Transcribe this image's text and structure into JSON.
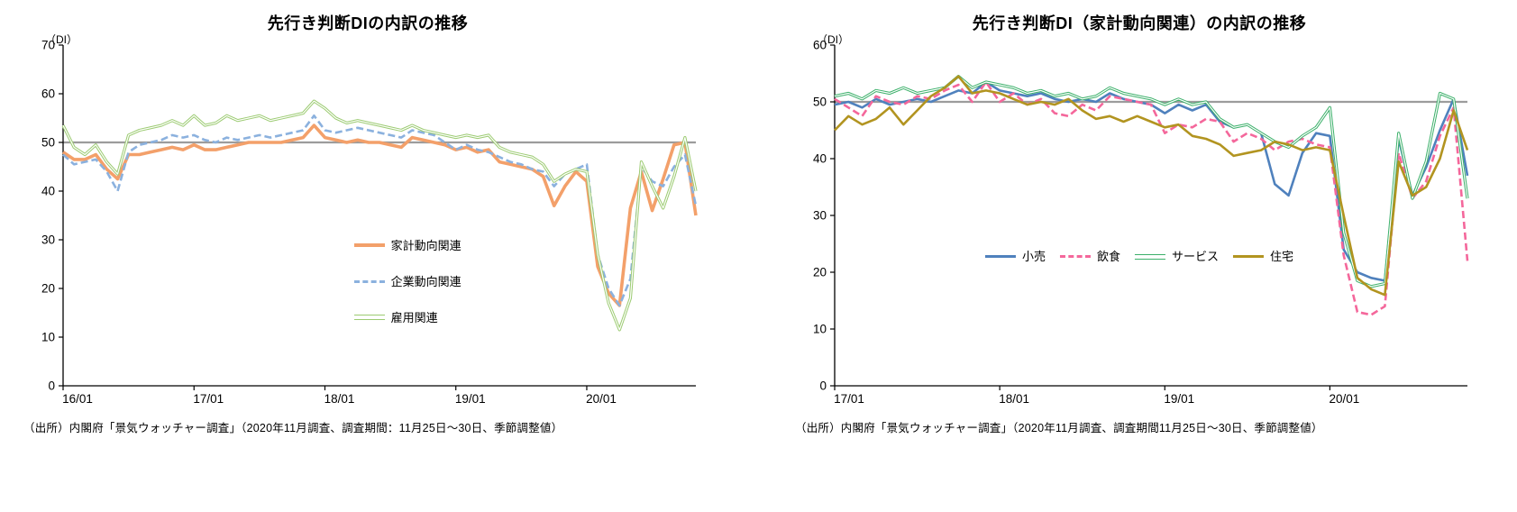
{
  "chart_data": [
    {
      "id": "di-breakdown",
      "type": "line",
      "title": "先行き判断DIの内訳の推移",
      "unit_label": "（DI）",
      "source": "（出所）内閣府「景気ウォッチャー調査」（2020年11月調査、調査期間：11月25日～30日、季節調整値）",
      "x_start": "2016/01",
      "x_end": "2020/11",
      "x_tick_labels": [
        "16/01",
        "17/01",
        "18/01",
        "19/01",
        "20/01"
      ],
      "x_tick_indices": [
        0,
        12,
        24,
        36,
        48
      ],
      "ylim": [
        0,
        70
      ],
      "y_ticks": [
        0,
        10,
        20,
        30,
        40,
        50,
        60,
        70
      ],
      "ref_line": 50,
      "ref_line_color": "#9C9C9C",
      "axis_color": "#000000",
      "legend_layout": "vertical",
      "series": [
        {
          "name": "家計動向関連",
          "color": "#F3A06A",
          "style": "solid-thick",
          "values": [
            48,
            46.5,
            46.5,
            47.5,
            44.5,
            42.5,
            47.5,
            47.5,
            48,
            48.5,
            49,
            48.5,
            49.5,
            48.5,
            48.5,
            49,
            49.5,
            50,
            50,
            50,
            50,
            50.5,
            51,
            53.5,
            51,
            50.5,
            50,
            50.5,
            50,
            50,
            49.5,
            49,
            51,
            50.5,
            50,
            49.5,
            48.5,
            49,
            48,
            48.5,
            46,
            45.5,
            45,
            44.5,
            43,
            37,
            41,
            44,
            42,
            24.5,
            19,
            16.5,
            36.5,
            44,
            36,
            42.5,
            49.5,
            50,
            35
          ]
        },
        {
          "name": "企業動向関連",
          "color": "#8BB1DE",
          "style": "dashed",
          "values": [
            47.5,
            45.5,
            46,
            46.5,
            44,
            40,
            48,
            49.5,
            50,
            50.5,
            51.5,
            51,
            51.5,
            50.5,
            50,
            51,
            50.5,
            51,
            51.5,
            51,
            51.5,
            52,
            52.5,
            55.5,
            52.5,
            52,
            52.5,
            53,
            52.5,
            52,
            51.5,
            51,
            52.5,
            52,
            51.5,
            50,
            48.5,
            49.5,
            48.5,
            48,
            47,
            46,
            45.5,
            44.5,
            44,
            41,
            43.5,
            44.5,
            45.5,
            27,
            20,
            16.5,
            22,
            45,
            42,
            41,
            45,
            47.5,
            37
          ]
        },
        {
          "name": "雇用関連",
          "color": "#9CCB72",
          "style": "double",
          "values": [
            53.5,
            49,
            47.5,
            49.5,
            46,
            43.5,
            51.5,
            52.5,
            53,
            53.5,
            54.5,
            53.5,
            55.5,
            53.5,
            54,
            55.5,
            54.5,
            55,
            55.5,
            54.5,
            55,
            55.5,
            56,
            58.5,
            57,
            55,
            54,
            54.5,
            54,
            53.5,
            53,
            52.5,
            53.5,
            52.5,
            52,
            51.5,
            51,
            51.5,
            51,
            51.5,
            49,
            48,
            47.5,
            47,
            45.5,
            42,
            43.5,
            44.5,
            44,
            27,
            17,
            11.5,
            18,
            46,
            41,
            36.5,
            43,
            51,
            40
          ]
        }
      ]
    },
    {
      "id": "di-household-breakdown",
      "type": "line",
      "title": "先行き判断DI（家計動向関連）の内訳の推移",
      "unit_label": "（DI）",
      "source": "（出所）内閣府「景気ウォッチャー調査」（2020年11月調査、調査期間11月25日～30日、季節調整値）",
      "x_start": "2017/01",
      "x_end": "2020/11",
      "x_tick_labels": [
        "17/01",
        "18/01",
        "19/01",
        "20/01"
      ],
      "x_tick_indices": [
        0,
        12,
        24,
        36
      ],
      "ylim": [
        0,
        60
      ],
      "y_ticks": [
        0,
        10,
        20,
        30,
        40,
        50,
        60
      ],
      "ref_line": 50,
      "ref_line_color": "#9C9C9C",
      "axis_color": "#000000",
      "legend_layout": "horizontal",
      "series": [
        {
          "name": "小売",
          "color": "#4F81BD",
          "style": "solid",
          "values": [
            49.5,
            50,
            49,
            50.5,
            49.5,
            50,
            50.5,
            50,
            51,
            52,
            51.5,
            53.5,
            52,
            51.5,
            51,
            51.5,
            50.5,
            50,
            50.5,
            50,
            51.5,
            50.5,
            50,
            49.5,
            48,
            49.5,
            48.5,
            49.5,
            46.5,
            45.5,
            46,
            44.5,
            35.5,
            33.5,
            41,
            44.5,
            44,
            24,
            20,
            19,
            18.5,
            43.5,
            33.5,
            38.5,
            45,
            50.5,
            37
          ]
        },
        {
          "name": "飲食",
          "color": "#F4679B",
          "style": "dashed",
          "values": [
            50.5,
            49,
            47.5,
            51,
            50,
            49.5,
            51,
            50.5,
            52,
            53,
            50,
            53.5,
            50,
            51.5,
            49.5,
            50.5,
            48,
            47.5,
            49.5,
            48.5,
            51,
            50.5,
            50,
            49.5,
            44.5,
            46,
            45.5,
            47,
            46.5,
            43,
            44.5,
            43.5,
            41.5,
            43,
            43.5,
            42.5,
            42,
            23,
            13,
            12.5,
            14,
            41,
            33,
            36,
            44,
            49,
            22
          ]
        },
        {
          "name": "サービス",
          "color": "#3CB06A",
          "style": "double",
          "values": [
            51,
            51.5,
            50.5,
            52,
            51.5,
            52.5,
            51.5,
            52,
            52.5,
            54.5,
            52.5,
            53.5,
            53,
            52.5,
            51.5,
            52,
            51,
            51.5,
            50.5,
            51,
            52.5,
            51.5,
            51,
            50.5,
            49.5,
            50.5,
            49.5,
            50,
            47,
            45.5,
            46,
            44.5,
            43,
            42,
            44,
            45.5,
            49,
            27,
            18.5,
            17.5,
            18,
            44.5,
            33,
            39.5,
            51.5,
            50.5,
            33
          ]
        },
        {
          "name": "住宅",
          "color": "#B29420",
          "style": "solid",
          "values": [
            45,
            47.5,
            46,
            47,
            49,
            46,
            48.5,
            51,
            52.5,
            54.5,
            51.5,
            52,
            51.5,
            50.5,
            49.5,
            50,
            49.5,
            50.5,
            48.5,
            47,
            47.5,
            46.5,
            47.5,
            46.5,
            45.5,
            46,
            44,
            43.5,
            42.5,
            40.5,
            41,
            41.5,
            43,
            42.5,
            41.5,
            42,
            41.5,
            30,
            19,
            17,
            16,
            39.5,
            33.5,
            35,
            40,
            48.5,
            41.5
          ]
        }
      ]
    }
  ]
}
